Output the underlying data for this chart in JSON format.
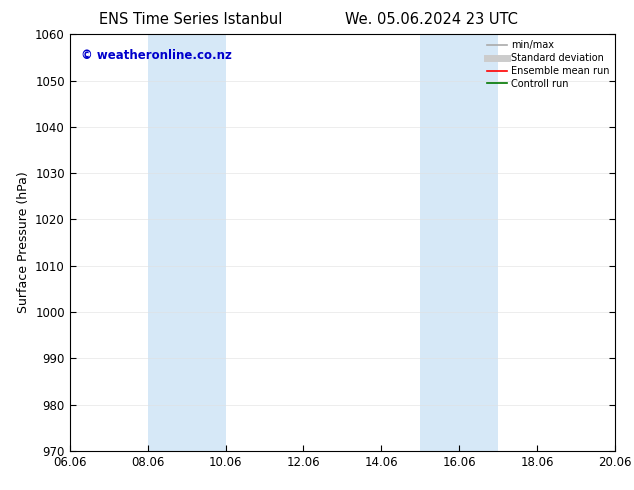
{
  "title_left": "ENS Time Series Istanbul",
  "title_right": "We. 05.06.2024 23 UTC",
  "ylabel": "Surface Pressure (hPa)",
  "ylim": [
    970,
    1060
  ],
  "yticks": [
    970,
    980,
    990,
    1000,
    1010,
    1020,
    1030,
    1040,
    1050,
    1060
  ],
  "xlim_num": [
    0,
    14
  ],
  "xtick_labels": [
    "06.06",
    "08.06",
    "10.06",
    "12.06",
    "14.06",
    "16.06",
    "18.06",
    "20.06"
  ],
  "xtick_positions": [
    0,
    2,
    4,
    6,
    8,
    10,
    12,
    14
  ],
  "shaded_regions": [
    {
      "xmin": 2,
      "xmax": 4,
      "color": "#d6e8f7"
    },
    {
      "xmin": 9,
      "xmax": 11,
      "color": "#d6e8f7"
    }
  ],
  "watermark": "© weatheronline.co.nz",
  "watermark_color": "#0000cc",
  "legend_items": [
    {
      "label": "min/max",
      "color": "#aaaaaa",
      "lw": 1.2,
      "style": "solid",
      "type": "line"
    },
    {
      "label": "Standard deviation",
      "color": "#cccccc",
      "lw": 5,
      "style": "solid",
      "type": "line"
    },
    {
      "label": "Ensemble mean run",
      "color": "#ff0000",
      "lw": 1.2,
      "style": "solid",
      "type": "line"
    },
    {
      "label": "Controll run",
      "color": "#007700",
      "lw": 1.2,
      "style": "solid",
      "type": "line"
    }
  ],
  "bg_color": "#ffffff",
  "plot_bg_color": "#ffffff",
  "title_fontsize": 10.5,
  "tick_fontsize": 8.5,
  "ylabel_fontsize": 9,
  "watermark_fontsize": 8.5
}
